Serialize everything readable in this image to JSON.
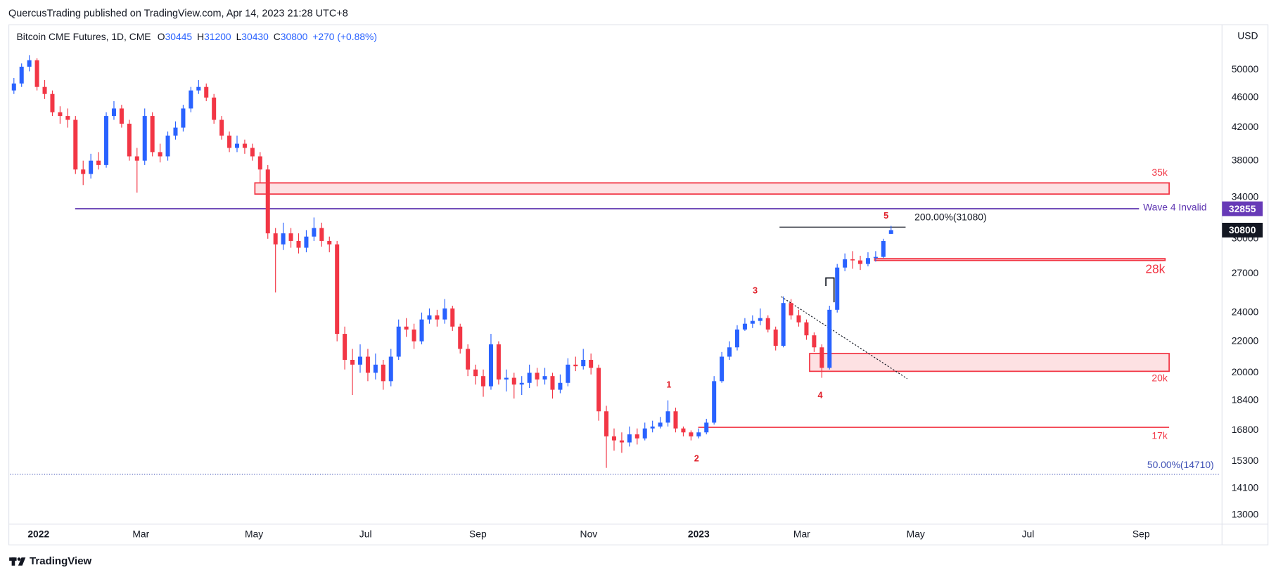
{
  "header": "QuercusTrading published on TradingView.com, Apr 14, 2023 21:28 UTC+8",
  "footer": "TradingView",
  "chart_data": {
    "type": "candlestick",
    "title": "Bitcoin CME Futures, 1D, CME",
    "ohlc_keys": [
      "O",
      "H",
      "L",
      "C"
    ],
    "change_label": "+270 (+0.88%)",
    "currency": "USD",
    "up_color": "#2962ff",
    "down_color": "#f23645",
    "log": true,
    "grid": false,
    "ylim": [
      12650,
      57400
    ],
    "yticks": [
      13000,
      14100,
      15300,
      16800,
      18400,
      20000,
      22000,
      24000,
      27000,
      30000,
      34000,
      38000,
      42000,
      46000,
      50000
    ],
    "xlim": [
      -0.5,
      156.8
    ],
    "xticks": [
      {
        "value": 3.2,
        "label": "2022"
      },
      {
        "value": 16.5,
        "label": "Mar"
      },
      {
        "value": 31.2,
        "label": "May"
      },
      {
        "value": 45.7,
        "label": "Jul"
      },
      {
        "value": 60.3,
        "label": "Sep"
      },
      {
        "value": 74.7,
        "label": "Nov"
      },
      {
        "value": 89.0,
        "label": "2023"
      },
      {
        "value": 102.4,
        "label": "Mar"
      },
      {
        "value": 117.2,
        "label": "May"
      },
      {
        "value": 131.8,
        "label": "Jul"
      },
      {
        "value": 146.5,
        "label": "Sep"
      }
    ],
    "ohlc": [
      [
        47000,
        48800,
        46500,
        48000
      ],
      [
        48000,
        51000,
        47500,
        50500
      ],
      [
        50500,
        52300,
        49800,
        51500
      ],
      [
        51500,
        51800,
        47000,
        47500
      ],
      [
        47500,
        48500,
        45800,
        46500
      ],
      [
        46500,
        47000,
        43500,
        44000
      ],
      [
        44000,
        44800,
        42500,
        43500
      ],
      [
        43500,
        44500,
        42000,
        43000
      ],
      [
        43000,
        43500,
        36500,
        37000
      ],
      [
        37000,
        38000,
        35300,
        36500
      ],
      [
        36500,
        38800,
        36000,
        38000
      ],
      [
        38000,
        39000,
        37000,
        37500
      ],
      [
        37500,
        44000,
        37200,
        43500
      ],
      [
        43500,
        45500,
        43000,
        44500
      ],
      [
        44500,
        45000,
        42000,
        42500
      ],
      [
        42500,
        43000,
        38000,
        38500
      ],
      [
        38500,
        39500,
        34500,
        38000
      ],
      [
        38000,
        44500,
        37500,
        43500
      ],
      [
        43500,
        44000,
        38500,
        39000
      ],
      [
        39000,
        40000,
        37800,
        38500
      ],
      [
        38500,
        41500,
        38000,
        41000
      ],
      [
        41000,
        42800,
        40500,
        42000
      ],
      [
        42000,
        45000,
        41500,
        44500
      ],
      [
        44500,
        47500,
        44000,
        47000
      ],
      [
        47000,
        48500,
        46500,
        47500
      ],
      [
        47500,
        48000,
        45500,
        46000
      ],
      [
        46000,
        46500,
        42500,
        43000
      ],
      [
        43000,
        43500,
        40500,
        41000
      ],
      [
        41000,
        41500,
        39000,
        39500
      ],
      [
        39500,
        41000,
        39000,
        40000
      ],
      [
        40000,
        40500,
        38800,
        39500
      ],
      [
        39500,
        40000,
        38000,
        38500
      ],
      [
        38500,
        39000,
        35500,
        37000
      ],
      [
        37000,
        37500,
        30000,
        30500
      ],
      [
        30500,
        31000,
        25500,
        29500
      ],
      [
        29500,
        31500,
        29000,
        30500
      ],
      [
        30500,
        31000,
        29200,
        29800
      ],
      [
        29800,
        30500,
        28700,
        29200
      ],
      [
        29200,
        30800,
        28800,
        30200
      ],
      [
        30200,
        32000,
        29800,
        31000
      ],
      [
        31000,
        31500,
        29300,
        29800
      ],
      [
        29800,
        30200,
        28800,
        29500
      ],
      [
        29500,
        29800,
        22000,
        22500
      ],
      [
        22500,
        23000,
        20200,
        20800
      ],
      [
        20800,
        21500,
        18700,
        20500
      ],
      [
        20500,
        21800,
        20000,
        21000
      ],
      [
        21000,
        21500,
        19500,
        20000
      ],
      [
        20000,
        21200,
        19600,
        20500
      ],
      [
        20500,
        20800,
        19000,
        19500
      ],
      [
        19500,
        21500,
        19200,
        21000
      ],
      [
        21000,
        23500,
        20800,
        23000
      ],
      [
        23000,
        23600,
        22300,
        22800
      ],
      [
        22800,
        23200,
        21500,
        22000
      ],
      [
        22000,
        24000,
        21800,
        23500
      ],
      [
        23500,
        24300,
        23200,
        23800
      ],
      [
        23800,
        24200,
        23000,
        23500
      ],
      [
        23500,
        25000,
        23200,
        24300
      ],
      [
        24300,
        24500,
        22700,
        23000
      ],
      [
        23000,
        23200,
        21200,
        21500
      ],
      [
        21500,
        21800,
        19800,
        20200
      ],
      [
        20200,
        20500,
        19300,
        19800
      ],
      [
        19800,
        20200,
        18600,
        19200
      ],
      [
        19200,
        22500,
        19000,
        21800
      ],
      [
        21800,
        22000,
        19300,
        19600
      ],
      [
        19600,
        20200,
        18900,
        19700
      ],
      [
        19700,
        20000,
        18500,
        19300
      ],
      [
        19300,
        19800,
        18700,
        19400
      ],
      [
        19400,
        20500,
        19100,
        20000
      ],
      [
        20000,
        20300,
        19200,
        19600
      ],
      [
        19600,
        20300,
        19300,
        19800
      ],
      [
        19800,
        20000,
        18500,
        19000
      ],
      [
        19000,
        19900,
        18800,
        19400
      ],
      [
        19400,
        20900,
        19200,
        20500
      ],
      [
        20500,
        21000,
        20100,
        20400
      ],
      [
        20400,
        21500,
        20200,
        20800
      ],
      [
        20800,
        21200,
        19900,
        20300
      ],
      [
        20300,
        20500,
        17300,
        17800
      ],
      [
        17800,
        18100,
        15000,
        16500
      ],
      [
        16500,
        16900,
        15800,
        16300
      ],
      [
        16300,
        16700,
        15700,
        16200
      ],
      [
        16200,
        17000,
        16000,
        16600
      ],
      [
        16600,
        16900,
        16100,
        16400
      ],
      [
        16400,
        17200,
        16300,
        16900
      ],
      [
        16900,
        17300,
        16700,
        17000
      ],
      [
        17000,
        17500,
        16900,
        17200
      ],
      [
        17200,
        18400,
        17000,
        17800
      ],
      [
        17800,
        18000,
        16700,
        16900
      ],
      [
        16900,
        17000,
        16500,
        16700
      ],
      [
        16700,
        16800,
        16300,
        16500
      ],
      [
        16500,
        16900,
        16400,
        16700
      ],
      [
        16700,
        17400,
        16600,
        17200
      ],
      [
        17200,
        19800,
        17100,
        19500
      ],
      [
        19500,
        21300,
        19400,
        21000
      ],
      [
        21000,
        22000,
        20800,
        21600
      ],
      [
        21600,
        23100,
        21400,
        22800
      ],
      [
        22800,
        23600,
        22700,
        23200
      ],
      [
        23200,
        23800,
        22900,
        23400
      ],
      [
        23400,
        24300,
        23100,
        23600
      ],
      [
        23600,
        23800,
        22600,
        22800
      ],
      [
        22800,
        23000,
        21400,
        21700
      ],
      [
        21700,
        25200,
        21600,
        24700
      ],
      [
        24700,
        25000,
        23500,
        23800
      ],
      [
        23800,
        24200,
        23000,
        23300
      ],
      [
        23300,
        23500,
        22100,
        22400
      ],
      [
        22400,
        22600,
        21300,
        21600
      ],
      [
        21600,
        21800,
        19700,
        20300
      ],
      [
        20300,
        24500,
        20200,
        24200
      ],
      [
        24200,
        27800,
        24000,
        27500
      ],
      [
        27500,
        28700,
        27200,
        28200
      ],
      [
        28200,
        28900,
        27400,
        28100
      ],
      [
        28100,
        28500,
        27300,
        27800
      ],
      [
        27800,
        28800,
        27600,
        28300
      ],
      [
        28300,
        28900,
        28000,
        28400
      ],
      [
        28400,
        30000,
        28300,
        29800
      ],
      [
        30445,
        31200,
        30430,
        30800
      ]
    ],
    "zones": [
      {
        "label": "35k",
        "range": [
          34350,
          35530
        ]
      },
      {
        "label": "28k",
        "range": [
          28100,
          28250
        ]
      },
      {
        "label": "20k",
        "range": [
          20090,
          21200
        ]
      }
    ],
    "levels": [
      {
        "label": "17k",
        "value": 16960
      },
      {
        "label": "Wave 4 Invalid",
        "value": 32855
      },
      {
        "label": "200.00%(31080)",
        "value": 31080
      },
      {
        "label": "50.00%(14710)",
        "value": 14710
      }
    ],
    "wave_labels": [
      "1",
      "2",
      "3",
      "4",
      "5"
    ]
  }
}
